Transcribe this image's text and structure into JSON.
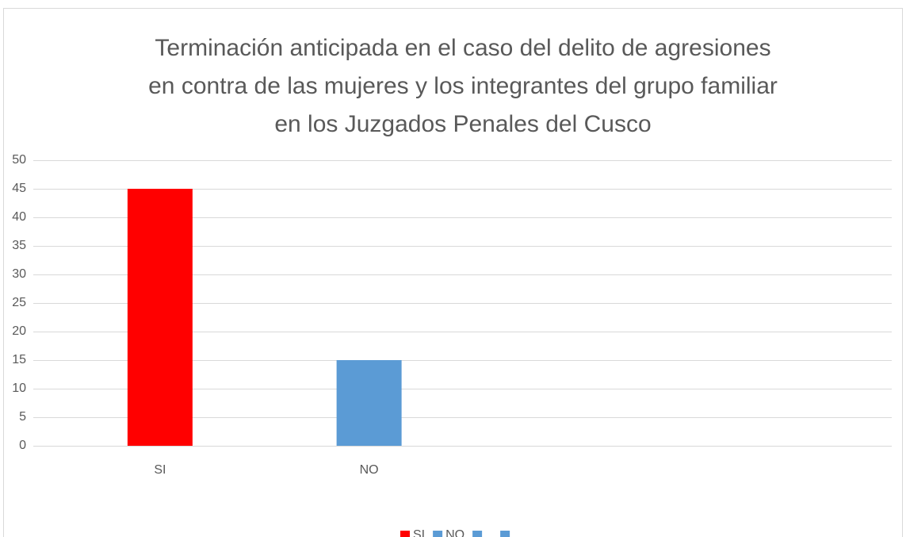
{
  "chart_data": {
    "type": "bar",
    "title": [
      "Terminación anticipada en el caso del delito de agresiones",
      "en contra de las mujeres y los integrantes del grupo familiar",
      "en los Juzgados Penales del Cusco"
    ],
    "categories": [
      "SI",
      "NO",
      null,
      null
    ],
    "values": [
      45,
      15,
      null,
      null
    ],
    "colors": [
      "#ff0000",
      "#5b9bd5",
      "#5b9bd5",
      "#5b9bd5"
    ],
    "ylim": [
      0,
      50
    ],
    "yticks": [
      0,
      5,
      10,
      15,
      20,
      25,
      30,
      35,
      40,
      45,
      50
    ],
    "grid": true,
    "legend": "bottom"
  }
}
